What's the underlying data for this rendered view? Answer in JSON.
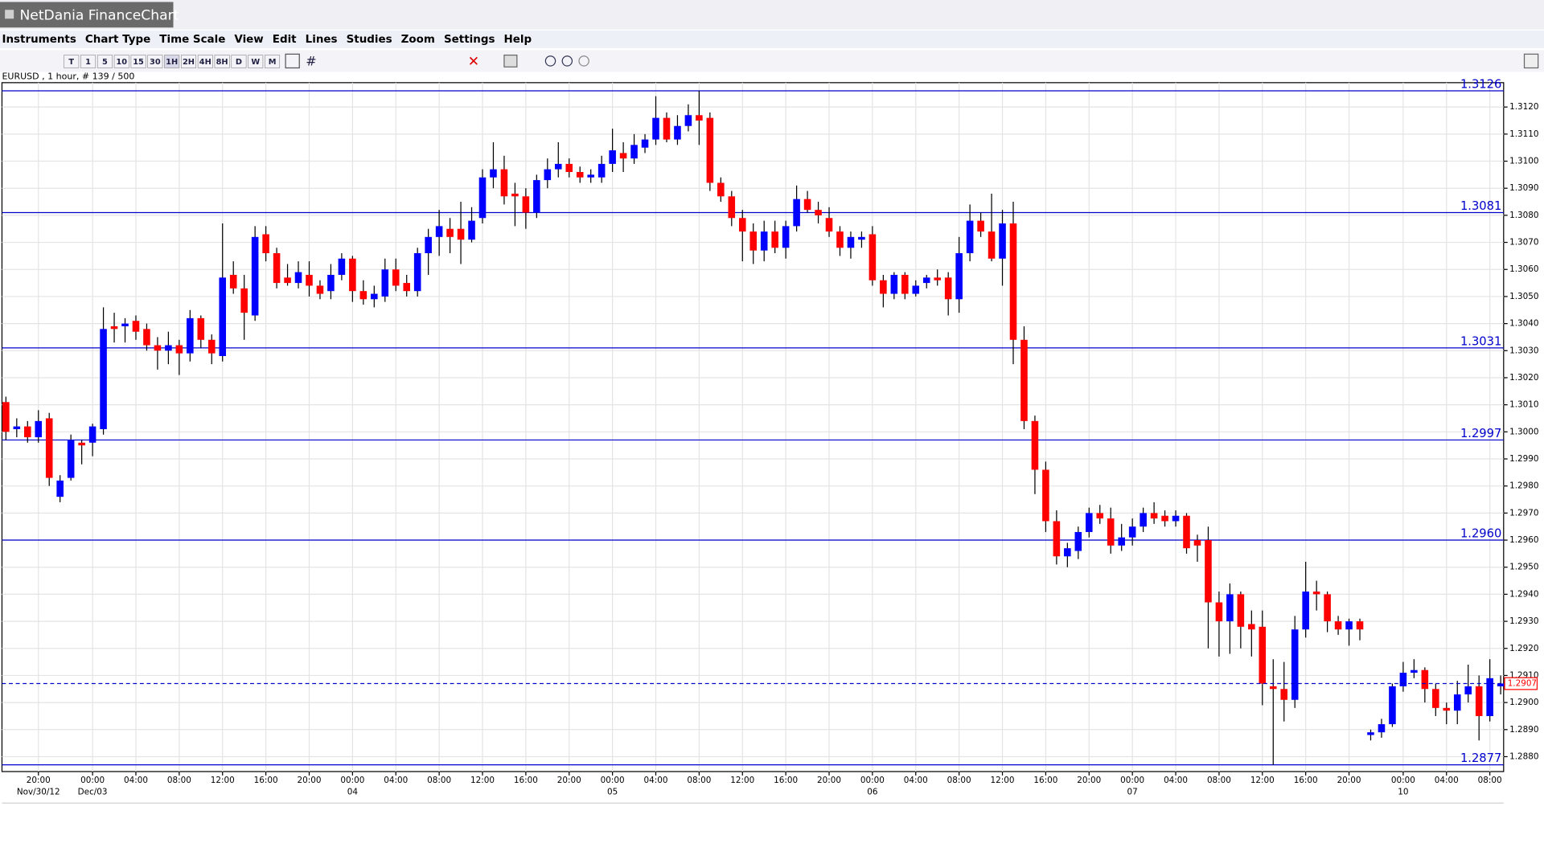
{
  "window": {
    "title": "NetDania FinanceChart"
  },
  "menu": [
    "Instruments",
    "Chart Type",
    "Time Scale",
    "View",
    "Edit",
    "Lines",
    "Studies",
    "Zoom",
    "Settings",
    "Help"
  ],
  "toolbar": {
    "intervals": [
      "T",
      "1",
      "5",
      "10",
      "15",
      "30",
      "1H",
      "2H",
      "4H",
      "8H",
      "D",
      "W",
      "M"
    ]
  },
  "chart_data": {
    "type": "candlestick",
    "header": "EURUSD , 1 hour, # 139 / 500",
    "up_color": "#0000ff",
    "down_color": "#ff0000",
    "level_color": "#0000cc",
    "current_color": "#ff0000",
    "ylim": [
      1.28745,
      1.3129
    ],
    "yticks": [
      {
        "value": 1.288,
        "label": "1.2880"
      },
      {
        "value": 1.289,
        "label": "1.2890"
      },
      {
        "value": 1.29,
        "label": "1.2900"
      },
      {
        "value": 1.291,
        "label": "1.2910"
      },
      {
        "value": 1.292,
        "label": "1.2920"
      },
      {
        "value": 1.293,
        "label": "1.2930"
      },
      {
        "value": 1.294,
        "label": "1.2940"
      },
      {
        "value": 1.295,
        "label": "1.2950"
      },
      {
        "value": 1.296,
        "label": "1.2960"
      },
      {
        "value": 1.297,
        "label": "1.2970"
      },
      {
        "value": 1.298,
        "label": "1.2980"
      },
      {
        "value": 1.299,
        "label": "1.2990"
      },
      {
        "value": 1.3,
        "label": "1.3000"
      },
      {
        "value": 1.301,
        "label": "1.3010"
      },
      {
        "value": 1.302,
        "label": "1.3020"
      },
      {
        "value": 1.303,
        "label": "1.3030"
      },
      {
        "value": 1.304,
        "label": "1.3040"
      },
      {
        "value": 1.305,
        "label": "1.3050"
      },
      {
        "value": 1.306,
        "label": "1.3060"
      },
      {
        "value": 1.307,
        "label": "1.3070"
      },
      {
        "value": 1.308,
        "label": "1.3080"
      },
      {
        "value": 1.309,
        "label": "1.3090"
      },
      {
        "value": 1.31,
        "label": "1.3100"
      },
      {
        "value": 1.311,
        "label": "1.3110"
      },
      {
        "value": 1.312,
        "label": "1.3120"
      }
    ],
    "xticks": [
      {
        "value": 3,
        "label": "20:00"
      },
      {
        "value": 8,
        "label": "00:00"
      },
      {
        "value": 12,
        "label": "04:00"
      },
      {
        "value": 16,
        "label": "08:00"
      },
      {
        "value": 20,
        "label": "12:00"
      },
      {
        "value": 24,
        "label": "16:00"
      },
      {
        "value": 28,
        "label": "20:00"
      },
      {
        "value": 32,
        "label": "00:00"
      },
      {
        "value": 36,
        "label": "04:00"
      },
      {
        "value": 40,
        "label": "08:00"
      },
      {
        "value": 44,
        "label": "12:00"
      },
      {
        "value": 48,
        "label": "16:00"
      },
      {
        "value": 52,
        "label": "20:00"
      },
      {
        "value": 56,
        "label": "00:00"
      },
      {
        "value": 60,
        "label": "04:00"
      },
      {
        "value": 64,
        "label": "08:00"
      },
      {
        "value": 68,
        "label": "12:00"
      },
      {
        "value": 72,
        "label": "16:00"
      },
      {
        "value": 76,
        "label": "20:00"
      },
      {
        "value": 80,
        "label": "00:00"
      },
      {
        "value": 84,
        "label": "04:00"
      },
      {
        "value": 88,
        "label": "08:00"
      },
      {
        "value": 92,
        "label": "12:00"
      },
      {
        "value": 96,
        "label": "16:00"
      },
      {
        "value": 100,
        "label": "20:00"
      },
      {
        "value": 104,
        "label": "00:00"
      },
      {
        "value": 108,
        "label": "04:00"
      },
      {
        "value": 112,
        "label": "08:00"
      },
      {
        "value": 116,
        "label": "12:00"
      },
      {
        "value": 120,
        "label": "16:00"
      },
      {
        "value": 124,
        "label": "20:00"
      },
      {
        "value": 129,
        "label": "00:00"
      },
      {
        "value": 133,
        "label": "04:00"
      },
      {
        "value": 137,
        "label": "08:00"
      }
    ],
    "xdates": [
      {
        "value": 3,
        "label": "Nov/30/12"
      },
      {
        "value": 8,
        "label": "Dec/03"
      },
      {
        "value": 32,
        "label": "04"
      },
      {
        "value": 56,
        "label": "05"
      },
      {
        "value": 80,
        "label": "06"
      },
      {
        "value": 104,
        "label": "07"
      },
      {
        "value": 129,
        "label": "10"
      }
    ],
    "levels": [
      1.3126,
      1.3081,
      1.3031,
      1.2997,
      {
        "value": 1.296,
        "label": "1.2960"
      },
      1.2877
    ],
    "current": 1.2907,
    "ohlc": [
      [
        1.3011,
        1.3013,
        1.2997,
        1.3
      ],
      [
        1.3001,
        1.3005,
        1.2998,
        1.3002
      ],
      [
        1.3002,
        1.3004,
        1.2996,
        1.2998
      ],
      [
        1.2998,
        1.3008,
        1.2996,
        1.3004
      ],
      [
        1.3005,
        1.3007,
        1.298,
        1.2983
      ],
      [
        1.2976,
        1.2984,
        1.2974,
        1.2982
      ],
      [
        1.2983,
        1.2999,
        1.2982,
        1.2997
      ],
      [
        1.2996,
        1.2997,
        1.2988,
        1.2995
      ],
      [
        1.2996,
        1.3003,
        1.2991,
        1.3002
      ],
      [
        1.3001,
        1.3046,
        1.2999,
        1.3038
      ],
      [
        1.3039,
        1.3044,
        1.3033,
        1.3038
      ],
      [
        1.3039,
        1.3042,
        1.3033,
        1.304
      ],
      [
        1.3041,
        1.3043,
        1.3034,
        1.3037
      ],
      [
        1.3038,
        1.304,
        1.303,
        1.3032
      ],
      [
        1.3032,
        1.3035,
        1.3023,
        1.303
      ],
      [
        1.303,
        1.3037,
        1.3025,
        1.3032
      ],
      [
        1.3032,
        1.3034,
        1.3021,
        1.3029
      ],
      [
        1.3029,
        1.3045,
        1.3026,
        1.3042
      ],
      [
        1.3042,
        1.3043,
        1.3031,
        1.3034
      ],
      [
        1.3034,
        1.3036,
        1.3025,
        1.3029
      ],
      [
        1.3028,
        1.3077,
        1.3026,
        1.3057
      ],
      [
        1.3058,
        1.3063,
        1.3051,
        1.3053
      ],
      [
        1.3053,
        1.3058,
        1.3034,
        1.3044
      ],
      [
        1.3043,
        1.3076,
        1.3041,
        1.3072
      ],
      [
        1.3073,
        1.3076,
        1.3063,
        1.3066
      ],
      [
        1.3066,
        1.3068,
        1.3053,
        1.3055
      ],
      [
        1.3057,
        1.3062,
        1.3054,
        1.3055
      ],
      [
        1.3055,
        1.3063,
        1.3053,
        1.3059
      ],
      [
        1.3058,
        1.3063,
        1.305,
        1.3054
      ],
      [
        1.3054,
        1.3056,
        1.3049,
        1.3051
      ],
      [
        1.3052,
        1.3062,
        1.3049,
        1.3058
      ],
      [
        1.3058,
        1.3066,
        1.3056,
        1.3064
      ],
      [
        1.3064,
        1.3065,
        1.3048,
        1.3052
      ],
      [
        1.3052,
        1.3056,
        1.3047,
        1.3049
      ],
      [
        1.3049,
        1.3054,
        1.3046,
        1.3051
      ],
      [
        1.305,
        1.3064,
        1.3048,
        1.306
      ],
      [
        1.306,
        1.3064,
        1.3052,
        1.3054
      ],
      [
        1.3055,
        1.3058,
        1.305,
        1.3052
      ],
      [
        1.3052,
        1.3068,
        1.305,
        1.3066
      ],
      [
        1.3066,
        1.3075,
        1.3058,
        1.3072
      ],
      [
        1.3072,
        1.3082,
        1.3065,
        1.3076
      ],
      [
        1.3075,
        1.3079,
        1.3066,
        1.3072
      ],
      [
        1.3075,
        1.3085,
        1.3062,
        1.3071
      ],
      [
        1.3071,
        1.3083,
        1.307,
        1.3078
      ],
      [
        1.3079,
        1.3097,
        1.3077,
        1.3094
      ],
      [
        1.3094,
        1.3107,
        1.309,
        1.3097
      ],
      [
        1.3097,
        1.3102,
        1.3084,
        1.3087
      ],
      [
        1.3088,
        1.3092,
        1.3076,
        1.3087
      ],
      [
        1.3087,
        1.309,
        1.3075,
        1.3081
      ],
      [
        1.3081,
        1.3095,
        1.3079,
        1.3093
      ],
      [
        1.3093,
        1.3101,
        1.309,
        1.3097
      ],
      [
        1.3097,
        1.3107,
        1.3094,
        1.3099
      ],
      [
        1.3099,
        1.3101,
        1.3094,
        1.3096
      ],
      [
        1.3096,
        1.3098,
        1.3092,
        1.3094
      ],
      [
        1.3094,
        1.3097,
        1.3092,
        1.3095
      ],
      [
        1.3094,
        1.3102,
        1.3092,
        1.3099
      ],
      [
        1.3099,
        1.3112,
        1.3096,
        1.3104
      ],
      [
        1.3103,
        1.3107,
        1.3096,
        1.3101
      ],
      [
        1.3101,
        1.311,
        1.3099,
        1.3106
      ],
      [
        1.3105,
        1.311,
        1.3103,
        1.3108
      ],
      [
        1.3108,
        1.3124,
        1.3106,
        1.3116
      ],
      [
        1.3116,
        1.3118,
        1.3107,
        1.3108
      ],
      [
        1.3108,
        1.3117,
        1.3106,
        1.3113
      ],
      [
        1.3113,
        1.3121,
        1.3111,
        1.3117
      ],
      [
        1.3117,
        1.3126,
        1.3106,
        1.3115
      ],
      [
        1.3116,
        1.3118,
        1.3089,
        1.3092
      ],
      [
        1.3092,
        1.3094,
        1.3085,
        1.3087
      ],
      [
        1.3087,
        1.3089,
        1.3076,
        1.3079
      ],
      [
        1.3079,
        1.3082,
        1.3063,
        1.3074
      ],
      [
        1.3074,
        1.3077,
        1.3062,
        1.3067
      ],
      [
        1.3067,
        1.3078,
        1.3063,
        1.3074
      ],
      [
        1.3074,
        1.3078,
        1.3066,
        1.3068
      ],
      [
        1.3068,
        1.3078,
        1.3064,
        1.3076
      ],
      [
        1.3076,
        1.3091,
        1.3074,
        1.3086
      ],
      [
        1.3086,
        1.3089,
        1.3081,
        1.3082
      ],
      [
        1.3082,
        1.3085,
        1.3077,
        1.308
      ],
      [
        1.3079,
        1.3083,
        1.3072,
        1.3074
      ],
      [
        1.3074,
        1.3076,
        1.3065,
        1.3068
      ],
      [
        1.3068,
        1.3074,
        1.3064,
        1.3072
      ],
      [
        1.3071,
        1.3074,
        1.3068,
        1.3072
      ],
      [
        1.3073,
        1.3076,
        1.3054,
        1.3056
      ],
      [
        1.3056,
        1.3058,
        1.3046,
        1.3051
      ],
      [
        1.3051,
        1.3059,
        1.3049,
        1.3058
      ],
      [
        1.3058,
        1.3059,
        1.3049,
        1.3051
      ],
      [
        1.3051,
        1.3056,
        1.305,
        1.3054
      ],
      [
        1.3055,
        1.3058,
        1.3053,
        1.3057
      ],
      [
        1.3057,
        1.306,
        1.3054,
        1.3056
      ],
      [
        1.3057,
        1.3059,
        1.3043,
        1.3049
      ],
      [
        1.3049,
        1.3072,
        1.3044,
        1.3066
      ],
      [
        1.3066,
        1.3084,
        1.3063,
        1.3078
      ],
      [
        1.3078,
        1.3081,
        1.3072,
        1.3074
      ],
      [
        1.3074,
        1.3088,
        1.3063,
        1.3064
      ],
      [
        1.3064,
        1.3082,
        1.3054,
        1.3077
      ],
      [
        1.3077,
        1.3085,
        1.3025,
        1.3034
      ],
      [
        1.3034,
        1.3039,
        1.3001,
        1.3004
      ],
      [
        1.3004,
        1.3006,
        1.2977,
        1.2986
      ],
      [
        1.2986,
        1.2989,
        1.2963,
        1.2967
      ],
      [
        1.2967,
        1.2971,
        1.2951,
        1.2954
      ],
      [
        1.2954,
        1.2959,
        1.295,
        1.2957
      ],
      [
        1.2956,
        1.2965,
        1.2953,
        1.2963
      ],
      [
        1.2963,
        1.2972,
        1.2961,
        1.297
      ],
      [
        1.297,
        1.2973,
        1.2966,
        1.2968
      ],
      [
        1.2968,
        1.2972,
        1.2955,
        1.2958
      ],
      [
        1.2958,
        1.2966,
        1.2956,
        1.2961
      ],
      [
        1.2961,
        1.2968,
        1.2958,
        1.2965
      ],
      [
        1.2965,
        1.2972,
        1.2963,
        1.297
      ],
      [
        1.297,
        1.2974,
        1.2966,
        1.2968
      ],
      [
        1.2969,
        1.2971,
        1.2965,
        1.2967
      ],
      [
        1.2967,
        1.2971,
        1.2965,
        1.2969
      ],
      [
        1.2969,
        1.297,
        1.2955,
        1.2957
      ],
      [
        1.296,
        1.2962,
        1.2952,
        1.2958
      ],
      [
        1.296,
        1.2965,
        1.292,
        1.2937
      ],
      [
        1.2937,
        1.2941,
        1.2917,
        1.293
      ],
      [
        1.293,
        1.2944,
        1.2918,
        1.294
      ],
      [
        1.294,
        1.2941,
        1.292,
        1.2928
      ],
      [
        1.2929,
        1.2934,
        1.2917,
        1.2927
      ],
      [
        1.2928,
        1.2934,
        1.2899,
        1.2907
      ],
      [
        1.2906,
        1.2916,
        1.2877,
        1.2905
      ],
      [
        1.2905,
        1.2915,
        1.2893,
        1.2901
      ],
      [
        1.2901,
        1.2932,
        1.2898,
        1.2927
      ],
      [
        1.2927,
        1.2952,
        1.2924,
        1.2941
      ],
      [
        1.2941,
        1.2945,
        1.2934,
        1.294
      ],
      [
        1.294,
        1.2941,
        1.2926,
        1.293
      ],
      [
        1.293,
        1.2932,
        1.2925,
        1.2927
      ],
      [
        1.2927,
        1.2931,
        1.2921,
        1.293
      ],
      [
        1.293,
        1.2931,
        1.2923,
        1.2927
      ],
      [
        1.2888,
        1.289,
        1.2886,
        1.2889
      ],
      [
        1.2889,
        1.2894,
        1.2887,
        1.2892
      ],
      [
        1.2892,
        1.2907,
        1.2891,
        1.2906
      ],
      [
        1.2906,
        1.2915,
        1.2904,
        1.2911
      ],
      [
        1.2911,
        1.2916,
        1.2909,
        1.2912
      ],
      [
        1.2912,
        1.2913,
        1.29,
        1.2905
      ],
      [
        1.2905,
        1.2907,
        1.2895,
        1.2898
      ],
      [
        1.2898,
        1.29,
        1.2892,
        1.2897
      ],
      [
        1.2897,
        1.2908,
        1.2892,
        1.2903
      ],
      [
        1.2903,
        1.2914,
        1.29,
        1.2906
      ],
      [
        1.2906,
        1.291,
        1.2886,
        1.2895
      ],
      [
        1.2895,
        1.2916,
        1.2893,
        1.2909
      ],
      [
        1.2906,
        1.291,
        1.2903,
        1.2907
      ]
    ]
  }
}
